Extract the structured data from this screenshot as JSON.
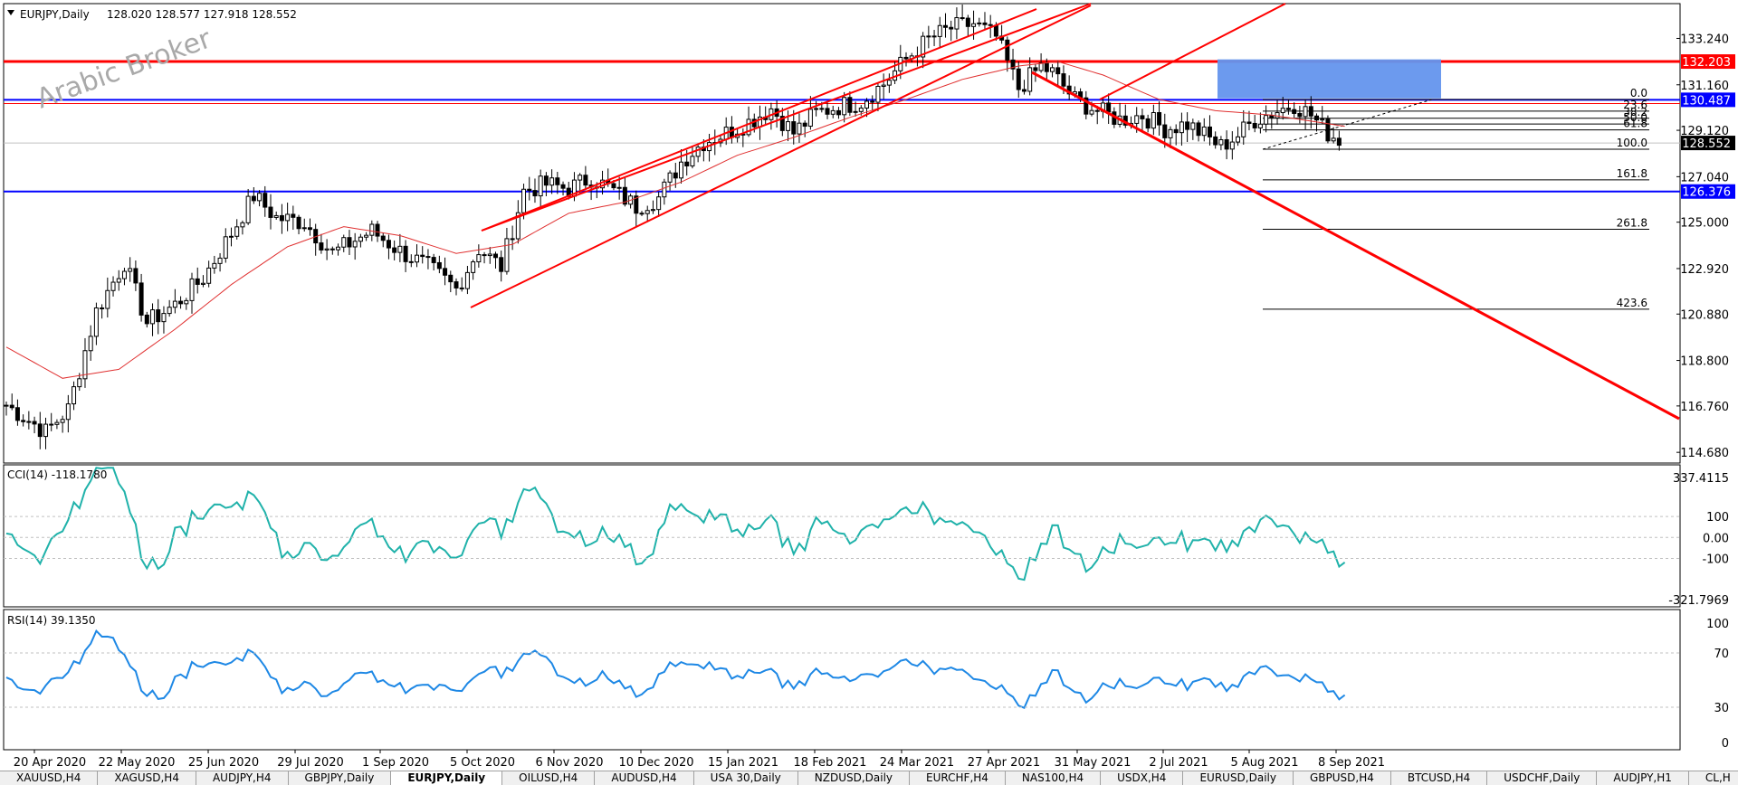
{
  "watermark": "Arabic Broker",
  "chart_data": [
    {
      "type": "candlestick",
      "title": "EURJPY,Daily",
      "ohlc_label": "128.020 128.577 127.918 128.552",
      "y_ticks": [
        "133.240",
        "131.160",
        "129.120",
        "127.040",
        "125.000",
        "122.920",
        "120.880",
        "118.800",
        "116.760",
        "114.680"
      ],
      "x_ticks": [
        "20 Apr 2020",
        "22 May 2020",
        "25 Jun 2020",
        "29 Jul 2020",
        "1 Sep 2020",
        "5 Oct 2020",
        "6 Nov 2020",
        "10 Dec 2020",
        "15 Jan 2021",
        "18 Feb 2021",
        "24 Mar 2021",
        "27 Apr 2021",
        "31 May 2021",
        "2 Jul 2021",
        "5 Aug 2021",
        "8 Sep 2021"
      ],
      "ylim": [
        114.2,
        134.8
      ],
      "current_price": "128.552",
      "price_labels": [
        {
          "value": "132.203",
          "price": 132.203,
          "color": "#ff0000"
        },
        {
          "value": "130.487",
          "price": 130.487,
          "color": "#0000ff"
        },
        {
          "value": "126.376",
          "price": 126.376,
          "color": "#0000ff"
        }
      ],
      "fib_levels": [
        {
          "label": "0.0",
          "price": 130.5
        },
        {
          "label": "23.6",
          "price": 129.98
        },
        {
          "label": "38.2",
          "price": 129.66
        },
        {
          "label": "50.0",
          "price": 129.4
        },
        {
          "label": "61.8",
          "price": 129.14
        },
        {
          "label": "100.0",
          "price": 128.27
        },
        {
          "label": "161.8",
          "price": 126.9
        },
        {
          "label": "261.8",
          "price": 124.68
        },
        {
          "label": "423.6",
          "price": 121.1
        }
      ],
      "close_path": [
        [
          0,
          116.8
        ],
        [
          7,
          115.6
        ],
        [
          11,
          116.6
        ],
        [
          16,
          121.0
        ],
        [
          21,
          123.2
        ],
        [
          25,
          120.5
        ],
        [
          30,
          121.3
        ],
        [
          35,
          122.5
        ],
        [
          40,
          124.5
        ],
        [
          44,
          126.2
        ],
        [
          48,
          125.2
        ],
        [
          53,
          125.0
        ],
        [
          58,
          123.6
        ],
        [
          62,
          124.2
        ],
        [
          65,
          124.6
        ],
        [
          70,
          123.7
        ],
        [
          75,
          123.0
        ],
        [
          80,
          122.0
        ],
        [
          84,
          123.8
        ],
        [
          88,
          123.0
        ],
        [
          92,
          126.4
        ],
        [
          96,
          126.7
        ],
        [
          100,
          126.5
        ],
        [
          104,
          127.0
        ],
        [
          108,
          126.4
        ],
        [
          112,
          125.7
        ],
        [
          116,
          126.1
        ],
        [
          120,
          127.7
        ],
        [
          124,
          128.6
        ],
        [
          128,
          129.0
        ],
        [
          132,
          129.5
        ],
        [
          136,
          130.1
        ],
        [
          140,
          129.0
        ],
        [
          144,
          129.9
        ],
        [
          148,
          130.2
        ],
        [
          152,
          130.4
        ],
        [
          156,
          131.2
        ],
        [
          160,
          132.3
        ],
        [
          164,
          133.2
        ],
        [
          168,
          133.7
        ],
        [
          172,
          133.9
        ],
        [
          176,
          133.3
        ],
        [
          180,
          131.0
        ],
        [
          184,
          132.0
        ],
        [
          186,
          131.7
        ],
        [
          190,
          130.5
        ],
        [
          194,
          130.0
        ],
        [
          198,
          129.6
        ],
        [
          202,
          129.8
        ],
        [
          206,
          129.2
        ],
        [
          210,
          129.4
        ],
        [
          213,
          128.9
        ],
        [
          216,
          128.4
        ],
        [
          219,
          128.9
        ],
        [
          222,
          129.6
        ],
        [
          226,
          130.0
        ],
        [
          229,
          130.3
        ],
        [
          232,
          129.8
        ],
        [
          235,
          129.0
        ],
        [
          238,
          128.55
        ]
      ],
      "series_note_free": true,
      "ma_path": [
        [
          0,
          119.4
        ],
        [
          10,
          118.0
        ],
        [
          20,
          118.4
        ],
        [
          30,
          120.2
        ],
        [
          40,
          122.2
        ],
        [
          50,
          123.9
        ],
        [
          60,
          124.8
        ],
        [
          70,
          124.4
        ],
        [
          80,
          123.6
        ],
        [
          90,
          124.0
        ],
        [
          100,
          125.4
        ],
        [
          110,
          125.9
        ],
        [
          120,
          126.8
        ],
        [
          130,
          128.0
        ],
        [
          140,
          128.8
        ],
        [
          150,
          129.7
        ],
        [
          160,
          130.5
        ],
        [
          170,
          131.4
        ],
        [
          180,
          132.0
        ],
        [
          187,
          132.2
        ],
        [
          195,
          131.6
        ],
        [
          205,
          130.5
        ],
        [
          215,
          130.0
        ],
        [
          225,
          129.8
        ],
        [
          238,
          129.3
        ]
      ]
    },
    {
      "type": "line",
      "title": "CCI(14) -118.1780",
      "y_ticks": [
        "337.4115",
        "100",
        "0.00",
        "-100",
        "-321.7969"
      ],
      "ylim": [
        -321.7969,
        337.4115
      ],
      "series": [
        {
          "color": "#20b2aa"
        }
      ]
    },
    {
      "type": "line",
      "title": "RSI(14) 39.1350",
      "y_ticks": [
        "100",
        "70",
        "30",
        "0"
      ],
      "ylim": [
        0,
        100
      ],
      "series": [
        {
          "color": "#1e88e5"
        }
      ]
    }
  ],
  "tabs": [
    "XAUUSD,H4",
    "XAGUSD,H4",
    "AUDJPY,H4",
    "GBPJPY,Daily",
    "EURJPY,Daily",
    "OILUSD,H4",
    "AUDUSD,H4",
    "USA 30,Daily",
    "NZDUSD,Daily",
    "EURCHF,H4",
    "NAS100,H4",
    "USDX,H4",
    "EURUSD,Daily",
    "GBPUSD,H4",
    "BTCUSD,H4",
    "USDCHF,Daily",
    "AUDJPY,H1",
    "CL,H"
  ],
  "active_tab": 4
}
